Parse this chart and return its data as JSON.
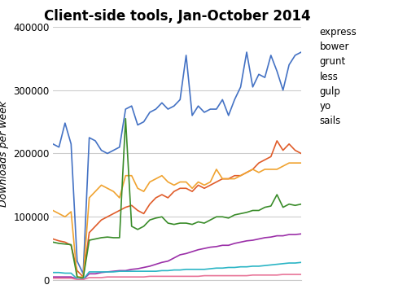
{
  "title": "Client-side tools, Jan-October 2014",
  "ylabel": "Downloads per week",
  "series": {
    "express": {
      "color": "#4472c4",
      "values": [
        215000,
        210000,
        248000,
        215000,
        30000,
        10000,
        225000,
        220000,
        205000,
        200000,
        205000,
        210000,
        270000,
        275000,
        245000,
        250000,
        265000,
        270000,
        280000,
        270000,
        275000,
        285000,
        355000,
        260000,
        275000,
        265000,
        270000,
        270000,
        285000,
        260000,
        285000,
        305000,
        360000,
        305000,
        325000,
        320000,
        355000,
        330000,
        300000,
        340000,
        355000,
        360000
      ]
    },
    "bower": {
      "color": "#e05c2a",
      "values": [
        65000,
        62000,
        60000,
        55000,
        15000,
        5000,
        75000,
        85000,
        95000,
        100000,
        105000,
        110000,
        115000,
        118000,
        110000,
        105000,
        120000,
        130000,
        135000,
        130000,
        140000,
        145000,
        145000,
        140000,
        150000,
        145000,
        150000,
        155000,
        160000,
        160000,
        165000,
        165000,
        170000,
        175000,
        185000,
        190000,
        195000,
        220000,
        205000,
        215000,
        205000,
        200000
      ]
    },
    "grunt": {
      "color": "#f0a330",
      "values": [
        110000,
        105000,
        100000,
        108000,
        5000,
        5000,
        130000,
        140000,
        150000,
        145000,
        140000,
        130000,
        165000,
        165000,
        145000,
        140000,
        155000,
        160000,
        165000,
        155000,
        150000,
        155000,
        155000,
        145000,
        155000,
        150000,
        155000,
        175000,
        160000,
        160000,
        160000,
        165000,
        170000,
        175000,
        170000,
        175000,
        175000,
        175000,
        180000,
        185000,
        185000,
        185000
      ]
    },
    "less": {
      "color": "#3a8c2a",
      "values": [
        60000,
        58000,
        57000,
        56000,
        5000,
        3000,
        63000,
        65000,
        67000,
        68000,
        67000,
        67000,
        255000,
        85000,
        80000,
        85000,
        95000,
        98000,
        100000,
        90000,
        88000,
        90000,
        90000,
        88000,
        92000,
        90000,
        95000,
        100000,
        100000,
        98000,
        103000,
        105000,
        107000,
        110000,
        110000,
        115000,
        117000,
        135000,
        115000,
        120000,
        118000,
        120000
      ]
    },
    "gulp": {
      "color": "#9b2fa8",
      "values": [
        5000,
        5000,
        5000,
        5000,
        2000,
        1000,
        10000,
        10000,
        12000,
        13000,
        14000,
        15000,
        15000,
        17000,
        18000,
        20000,
        22000,
        25000,
        28000,
        30000,
        35000,
        40000,
        42000,
        45000,
        48000,
        50000,
        52000,
        53000,
        55000,
        55000,
        58000,
        60000,
        62000,
        63000,
        65000,
        67000,
        68000,
        70000,
        70000,
        72000,
        72000,
        73000
      ]
    },
    "yo": {
      "color": "#2bb5c5",
      "values": [
        12000,
        12000,
        11000,
        11000,
        2000,
        1000,
        13000,
        13000,
        13000,
        13000,
        13000,
        14000,
        14000,
        14000,
        14000,
        14000,
        14000,
        14000,
        15000,
        15000,
        16000,
        16000,
        17000,
        17000,
        17000,
        17000,
        18000,
        19000,
        19000,
        20000,
        20000,
        21000,
        21000,
        22000,
        22000,
        23000,
        24000,
        25000,
        26000,
        27000,
        27000,
        28000
      ]
    },
    "sails": {
      "color": "#e87498",
      "values": [
        3000,
        3000,
        3000,
        3000,
        1000,
        1000,
        4000,
        4000,
        4000,
        5000,
        5000,
        5000,
        5000,
        5000,
        5000,
        5000,
        6000,
        6000,
        6000,
        6000,
        6000,
        6000,
        6000,
        6000,
        6000,
        7000,
        7000,
        7000,
        7000,
        7000,
        7000,
        7000,
        7000,
        8000,
        8000,
        8000,
        8000,
        8000,
        9000,
        9000,
        9000,
        9000
      ]
    }
  },
  "ylim": [
    0,
    400000
  ],
  "yticks": [
    0,
    100000,
    200000,
    300000,
    400000
  ],
  "background_color": "#ffffff",
  "grid_color": "#cccccc",
  "title_fontsize": 12,
  "axis_label_fontsize": 9
}
